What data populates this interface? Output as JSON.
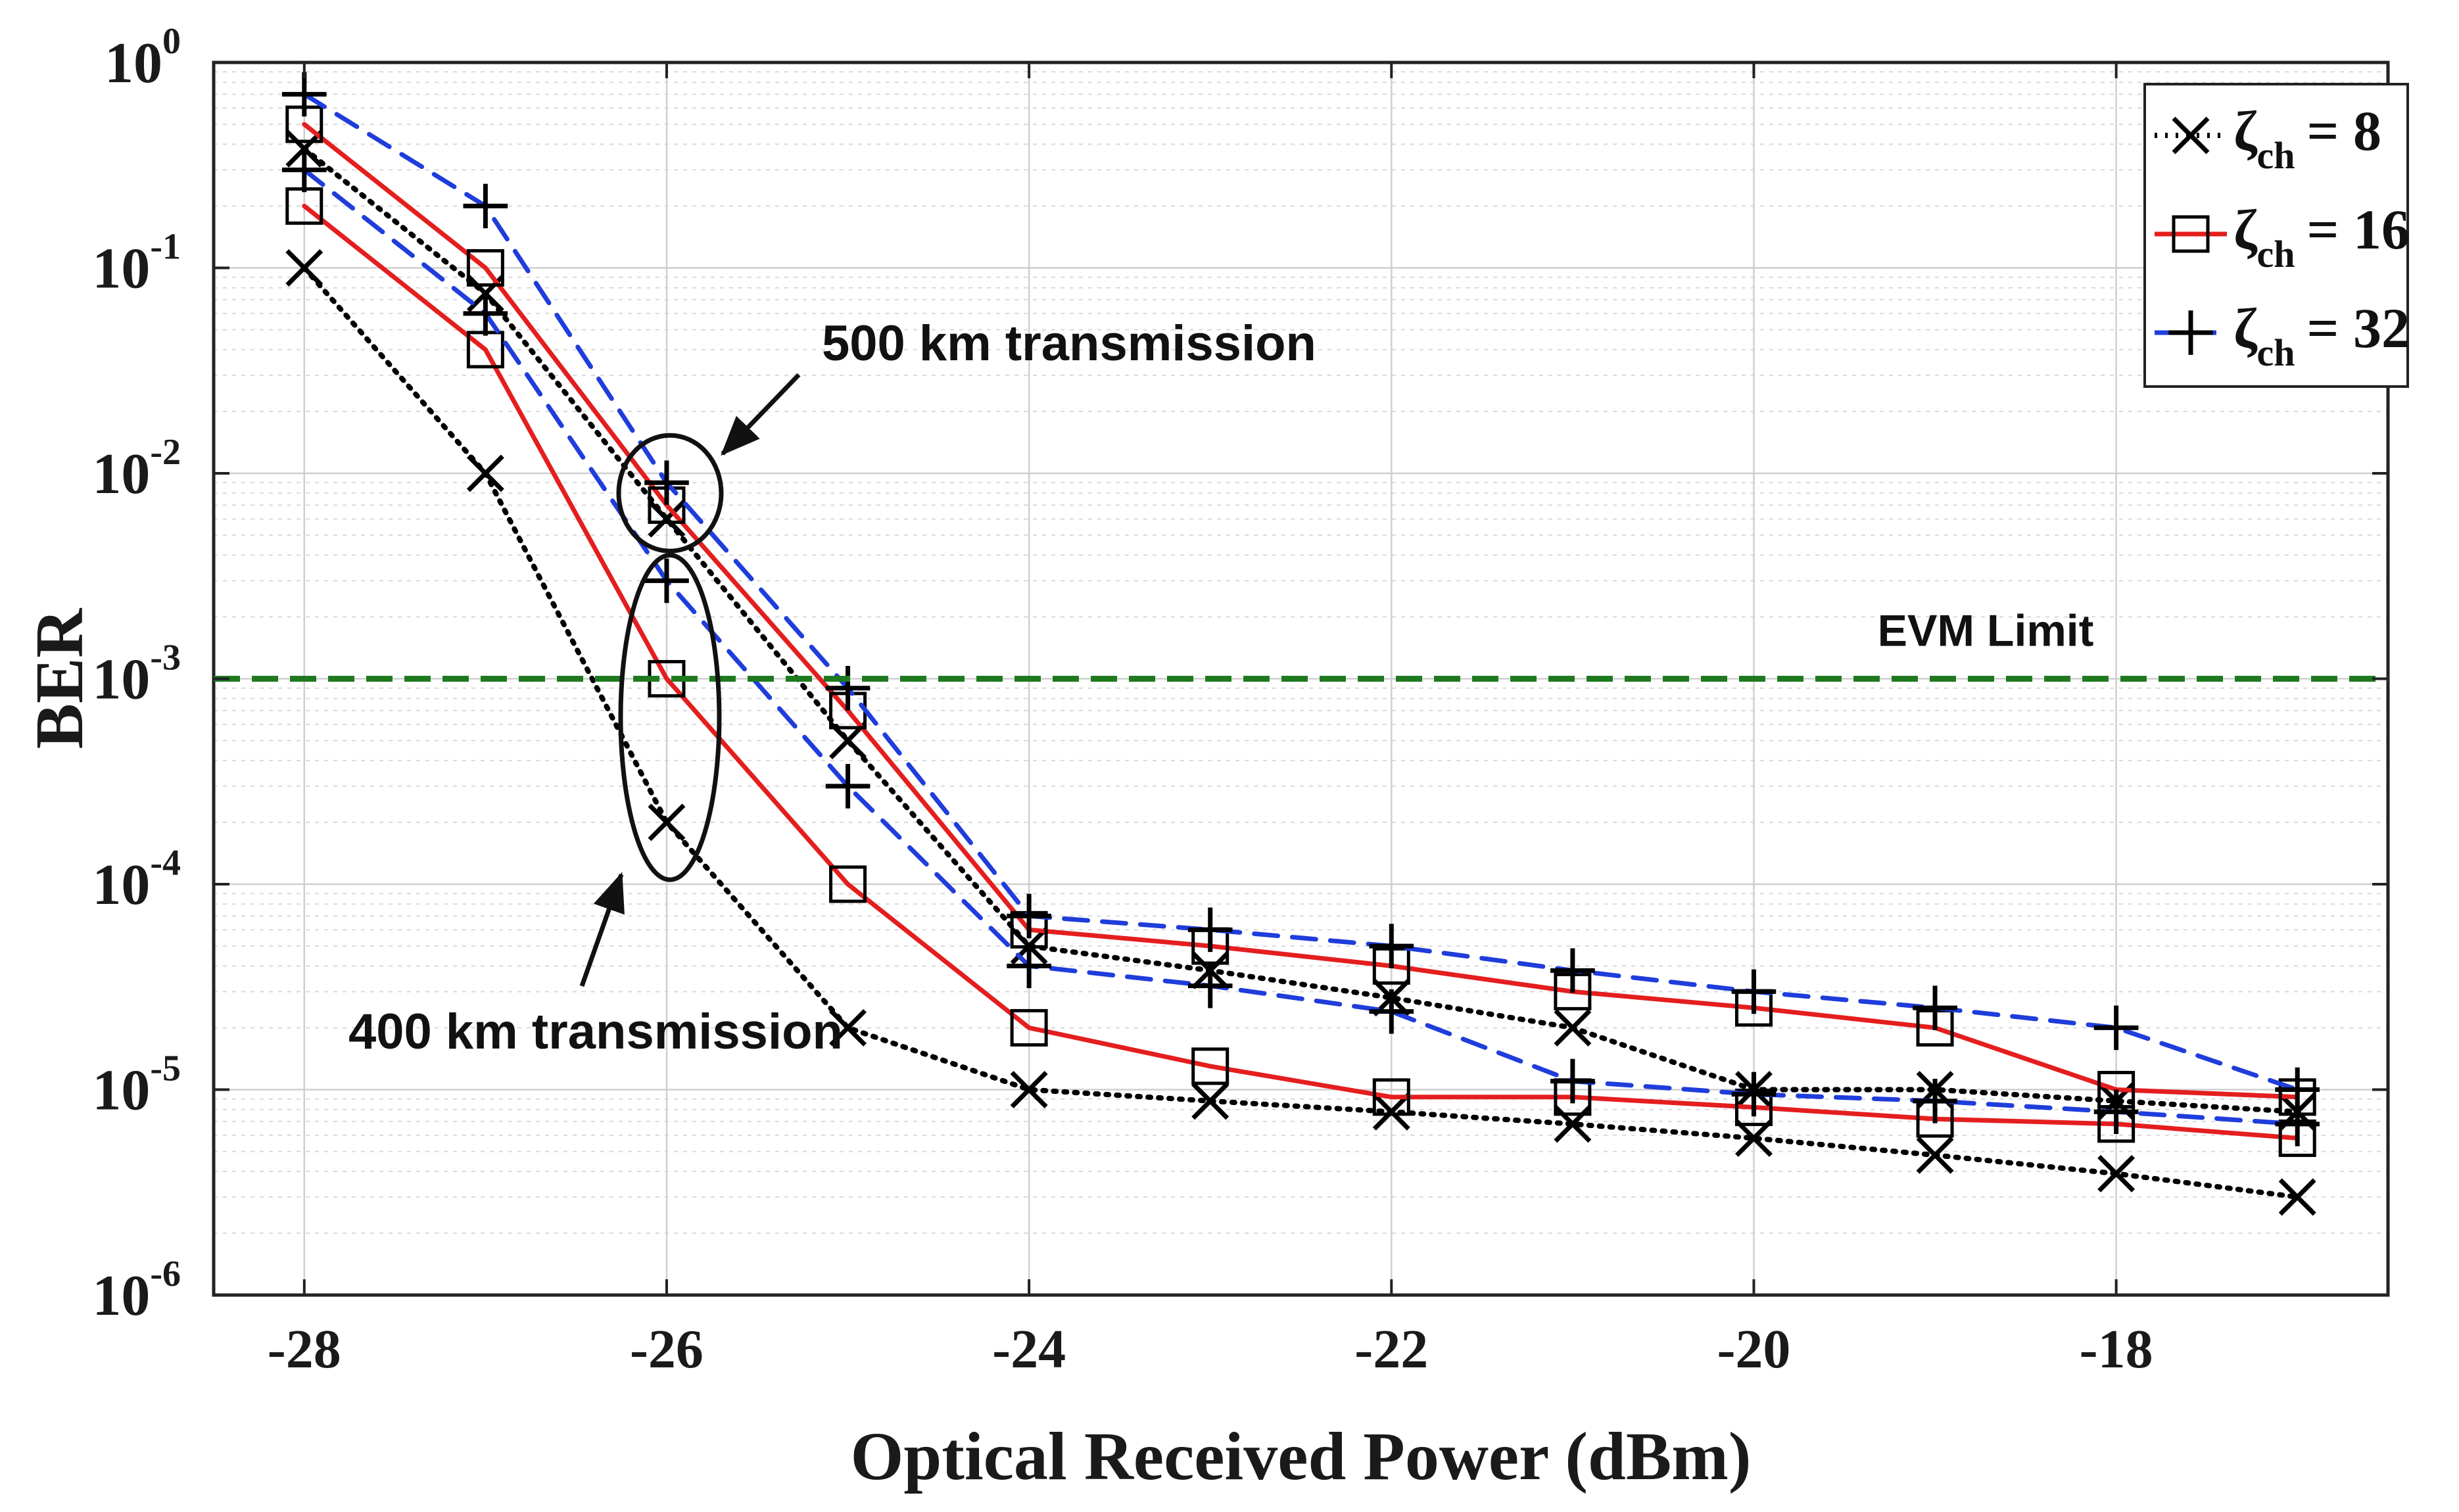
{
  "chart_data": {
    "type": "line",
    "yscale": "log",
    "xlabel": "Optical Received Power (dBm)",
    "ylabel": "BER",
    "xlim": [
      -28.5,
      -16.5
    ],
    "ylim": [
      1e-06,
      1
    ],
    "grid": true,
    "legend_position": "top-right",
    "x_ticks": [
      -28,
      -26,
      -24,
      -22,
      -20,
      -18
    ],
    "y_ticks": [
      {
        "base": "10",
        "exp": "0",
        "value": 1
      },
      {
        "base": "10",
        "exp": "-1",
        "value": 0.1
      },
      {
        "base": "10",
        "exp": "-2",
        "value": 0.01
      },
      {
        "base": "10",
        "exp": "-3",
        "value": 0.001
      },
      {
        "base": "10",
        "exp": "-4",
        "value": 0.0001
      },
      {
        "base": "10",
        "exp": "-5",
        "value": 1e-05
      },
      {
        "base": "10",
        "exp": "-6",
        "value": 1e-06
      }
    ],
    "x": [
      -28,
      -27,
      -26,
      -25,
      -24,
      -23,
      -22,
      -21,
      -20,
      -19,
      -18,
      -17
    ],
    "legend": [
      {
        "key": "zeta8",
        "symbol": "ζ",
        "sub": "ch",
        "text": "= 8",
        "color": "#000000",
        "marker": "x",
        "dash": "dotted"
      },
      {
        "key": "zeta16",
        "symbol": "ζ",
        "sub": "ch",
        "text": "= 16",
        "color": "#e41e1e",
        "marker": "square",
        "dash": "solid"
      },
      {
        "key": "zeta32",
        "symbol": "ζ",
        "sub": "ch",
        "text": "= 32",
        "color": "#1f3ddb",
        "marker": "plus",
        "dash": "dashed"
      }
    ],
    "series": [
      {
        "name": "ζch = 8, 400 km transmission",
        "key": "zeta8",
        "values": [
          0.1,
          0.01,
          0.0002,
          2e-05,
          1e-05,
          8.8e-06,
          7.8e-06,
          6.8e-06,
          5.8e-06,
          4.8e-06,
          3.9e-06,
          3e-06
        ]
      },
      {
        "name": "ζch = 8, 500 km transmission",
        "key": "zeta8",
        "values": [
          0.38,
          0.075,
          0.006,
          0.0005,
          5e-05,
          3.8e-05,
          2.8e-05,
          2e-05,
          1e-05,
          1e-05,
          8.8e-06,
          7.8e-06
        ]
      },
      {
        "name": "ζch = 16, 400 km transmission",
        "key": "zeta16",
        "values": [
          0.2,
          0.04,
          0.001,
          0.0001,
          2e-05,
          1.3e-05,
          9.2e-06,
          9.2e-06,
          8.2e-06,
          7.2e-06,
          6.8e-06,
          5.8e-06
        ]
      },
      {
        "name": "ζch = 16, 500 km transmission",
        "key": "zeta16",
        "values": [
          0.5,
          0.1,
          0.007,
          0.0007,
          6e-05,
          5e-05,
          4e-05,
          3e-05,
          2.5e-05,
          2e-05,
          1e-05,
          9.2e-06
        ]
      },
      {
        "name": "ζch = 32, 400 km transmission",
        "key": "zeta32",
        "values": [
          0.3,
          0.06,
          0.003,
          0.0003,
          4e-05,
          3.2e-05,
          2.4e-05,
          1.1e-05,
          9.5e-06,
          8.8e-06,
          7.8e-06,
          6.8e-06
        ]
      },
      {
        "name": "ζch = 32, 500 km transmission",
        "key": "zeta32",
        "values": [
          0.7,
          0.2,
          0.009,
          0.0009,
          7e-05,
          6e-05,
          5e-05,
          3.8e-05,
          3e-05,
          2.5e-05,
          2e-05,
          1e-05
        ]
      }
    ],
    "reference_line": {
      "label": "EVM Limit",
      "value": 0.001,
      "color": "#1f7a1f"
    },
    "annotations": [
      {
        "text": "500 km transmission",
        "target_x": -26,
        "target_y": 0.008
      },
      {
        "text": "400 km transmission",
        "target_x": -26,
        "target_y": 0.0003
      }
    ]
  }
}
